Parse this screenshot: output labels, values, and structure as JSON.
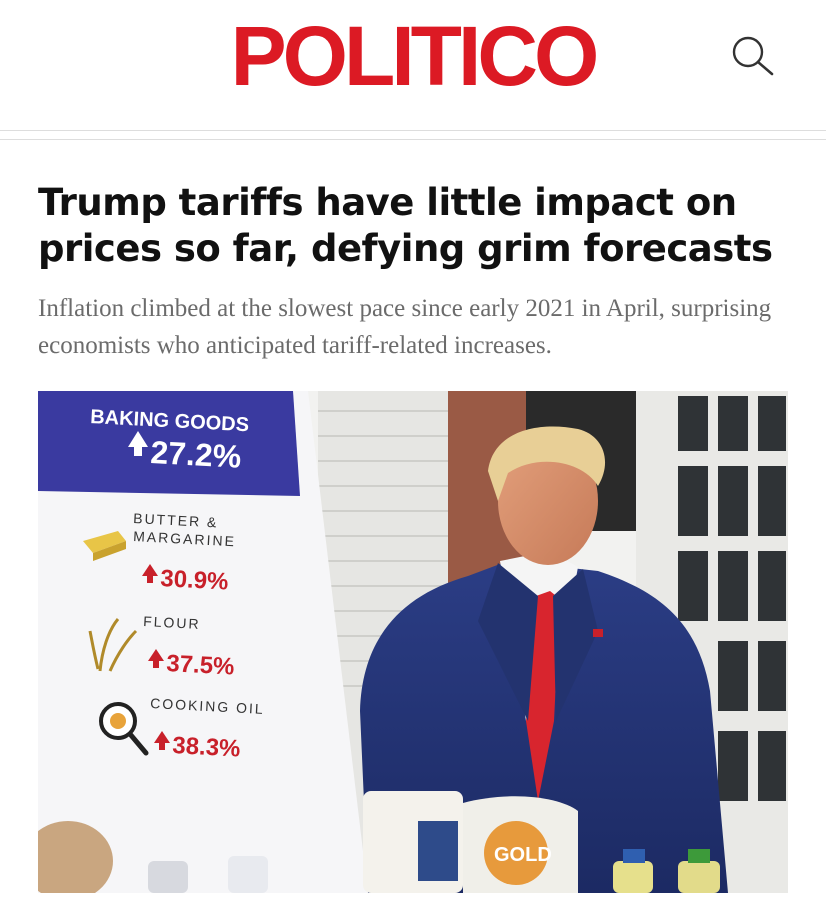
{
  "header": {
    "logo_text": "POLITICO",
    "search_icon": "search-icon",
    "brand_color": "#dc1a24"
  },
  "article": {
    "headline": "Trump tariffs have little impact on prices so far, defying grim forecasts",
    "dek": "Inflation climbed at the slowest pace since early 2021 in April, surprising economists who anticipated tariff-related increases."
  },
  "photo_sign": {
    "banner_title": "BAKING GOODS",
    "banner_value": "27.2%",
    "items": [
      {
        "label_line1": "BUTTER &",
        "label_line2": "MARGARINE",
        "value": "30.9%",
        "icon": "butter-icon"
      },
      {
        "label_line1": "FLOUR",
        "label_line2": "",
        "value": "37.5%",
        "icon": "wheat-icon"
      },
      {
        "label_line1": "COOKING OIL",
        "label_line2": "",
        "value": "38.3%",
        "icon": "frying-pan-icon"
      }
    ],
    "bag_label": "GOLD",
    "banner_color": "#3a3aa0",
    "value_color": "#c8202a"
  }
}
